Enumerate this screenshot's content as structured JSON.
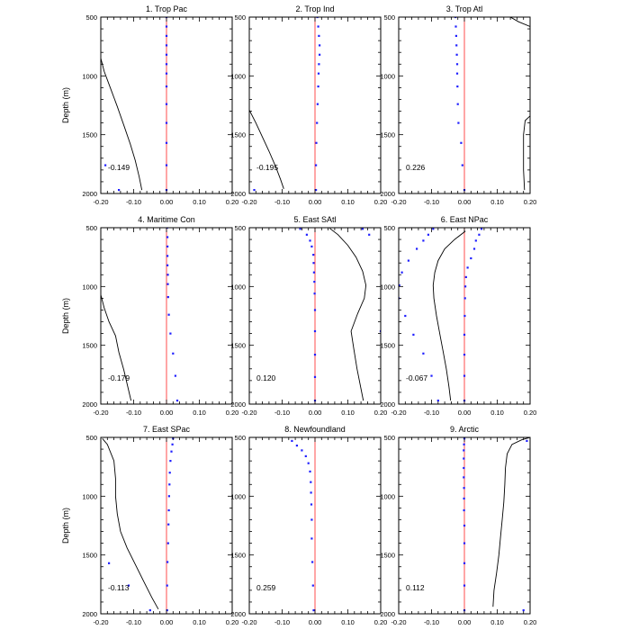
{
  "chart_data": {
    "type": "line",
    "ylabel": "Depth (m)",
    "xlim": [
      -0.2,
      0.2
    ],
    "ylim": [
      500,
      2000
    ],
    "y_reversed": true,
    "xticks": [
      "-0.20",
      "-0.10",
      "0.00",
      "0.10",
      "0.20"
    ],
    "yticks": [
      "500",
      "1000",
      "1500",
      "2000"
    ],
    "colors": {
      "zero_line": "#ff4d4d",
      "points": "#1f1fff",
      "curve": "#000000",
      "frame": "#000000"
    },
    "panels": [
      {
        "title": "1. Trop Pac",
        "value_label": "-0.149",
        "curve": [
          [
            -0.2,
            850
          ],
          [
            -0.19,
            960
          ],
          [
            -0.17,
            1110
          ],
          [
            -0.15,
            1260
          ],
          [
            -0.13,
            1420
          ],
          [
            -0.11,
            1580
          ],
          [
            -0.095,
            1720
          ],
          [
            -0.083,
            1860
          ],
          [
            -0.075,
            1970
          ]
        ],
        "points": [
          [
            0.0,
            500
          ],
          [
            0.0,
            580
          ],
          [
            0.0,
            660
          ],
          [
            0.0,
            740
          ],
          [
            0.0,
            820
          ],
          [
            0.0,
            900
          ],
          [
            0.0,
            980
          ],
          [
            0.0,
            1090
          ],
          [
            0.0,
            1240
          ],
          [
            0.0,
            1400
          ],
          [
            0.0,
            1570
          ],
          [
            0.0,
            1760
          ],
          [
            0.0,
            1970
          ],
          [
            -0.186,
            1760
          ],
          [
            -0.145,
            1970
          ]
        ]
      },
      {
        "title": "2. Trop Ind",
        "value_label": "-0.195",
        "curve": [
          [
            -0.2,
            1290
          ],
          [
            -0.18,
            1400
          ],
          [
            -0.16,
            1520
          ],
          [
            -0.14,
            1640
          ],
          [
            -0.12,
            1770
          ],
          [
            -0.105,
            1880
          ],
          [
            -0.095,
            1960
          ]
        ],
        "points": [
          [
            0.007,
            500
          ],
          [
            0.01,
            580
          ],
          [
            0.012,
            660
          ],
          [
            0.014,
            740
          ],
          [
            0.014,
            820
          ],
          [
            0.012,
            900
          ],
          [
            0.011,
            980
          ],
          [
            0.01,
            1090
          ],
          [
            0.008,
            1240
          ],
          [
            0.006,
            1400
          ],
          [
            0.004,
            1570
          ],
          [
            0.003,
            1760
          ],
          [
            0.003,
            1970
          ],
          [
            -0.185,
            1970
          ]
        ]
      },
      {
        "title": "3. Trop Atl",
        "value_label": "0.226",
        "curve_segments": [
          [
            [
              0.14,
              500
            ],
            [
              0.165,
              540
            ],
            [
              0.2,
              580
            ]
          ],
          [
            [
              0.2,
              1340
            ],
            [
              0.185,
              1380
            ],
            [
              0.18,
              1500
            ],
            [
              0.18,
              1650
            ],
            [
              0.18,
              1800
            ],
            [
              0.183,
              1970
            ]
          ]
        ],
        "points": [
          [
            -0.027,
            500
          ],
          [
            -0.026,
            580
          ],
          [
            -0.025,
            660
          ],
          [
            -0.024,
            740
          ],
          [
            -0.023,
            820
          ],
          [
            -0.022,
            900
          ],
          [
            -0.022,
            980
          ],
          [
            -0.021,
            1090
          ],
          [
            -0.02,
            1240
          ],
          [
            -0.018,
            1400
          ],
          [
            -0.01,
            1570
          ],
          [
            -0.006,
            1760
          ],
          [
            0.0,
            1970
          ]
        ]
      },
      {
        "title": "4. Maritime Con",
        "value_label": "-0.179",
        "curve": [
          [
            -0.2,
            1070
          ],
          [
            -0.19,
            1180
          ],
          [
            -0.175,
            1300
          ],
          [
            -0.155,
            1420
          ],
          [
            -0.145,
            1560
          ],
          [
            -0.13,
            1710
          ],
          [
            -0.118,
            1850
          ],
          [
            -0.108,
            1970
          ]
        ],
        "points": [
          [
            0.002,
            500
          ],
          [
            0.003,
            580
          ],
          [
            0.003,
            660
          ],
          [
            0.003,
            740
          ],
          [
            0.003,
            820
          ],
          [
            0.004,
            900
          ],
          [
            0.004,
            980
          ],
          [
            0.005,
            1090
          ],
          [
            0.007,
            1240
          ],
          [
            0.012,
            1400
          ],
          [
            0.02,
            1570
          ],
          [
            0.027,
            1760
          ],
          [
            0.033,
            1970
          ]
        ]
      },
      {
        "title": "5. East SAtl",
        "value_label": "0.120",
        "curve": [
          [
            0.045,
            505
          ],
          [
            0.07,
            560
          ],
          [
            0.1,
            650
          ],
          [
            0.125,
            750
          ],
          [
            0.145,
            870
          ],
          [
            0.155,
            990
          ],
          [
            0.15,
            1100
          ],
          [
            0.13,
            1230
          ],
          [
            0.11,
            1380
          ],
          [
            0.118,
            1530
          ],
          [
            0.128,
            1700
          ],
          [
            0.14,
            1870
          ],
          [
            0.147,
            1970
          ]
        ],
        "points": [
          [
            -0.045,
            510
          ],
          [
            -0.025,
            560
          ],
          [
            -0.015,
            610
          ],
          [
            -0.01,
            660
          ],
          [
            -0.005,
            730
          ],
          [
            -0.004,
            800
          ],
          [
            -0.003,
            880
          ],
          [
            -0.002,
            960
          ],
          [
            -0.001,
            1060
          ],
          [
            0.0,
            1200
          ],
          [
            0.0,
            1380
          ],
          [
            0.0,
            1580
          ],
          [
            0.0,
            1770
          ],
          [
            0.0,
            1970
          ],
          [
            0.145,
            510
          ],
          [
            0.165,
            560
          ],
          [
            0.2,
            1380
          ]
        ]
      },
      {
        "title": "6. East NPac",
        "value_label": "-0.067",
        "curve": [
          [
            0.003,
            530
          ],
          [
            -0.03,
            600
          ],
          [
            -0.06,
            680
          ],
          [
            -0.08,
            780
          ],
          [
            -0.09,
            880
          ],
          [
            -0.095,
            990
          ],
          [
            -0.093,
            1100
          ],
          [
            -0.085,
            1250
          ],
          [
            -0.075,
            1400
          ],
          [
            -0.065,
            1550
          ],
          [
            -0.055,
            1700
          ],
          [
            -0.047,
            1850
          ],
          [
            -0.042,
            1970
          ]
        ],
        "points": [
          [
            -0.095,
            510
          ],
          [
            -0.11,
            560
          ],
          [
            -0.125,
            610
          ],
          [
            -0.145,
            680
          ],
          [
            -0.17,
            780
          ],
          [
            -0.19,
            880
          ],
          [
            -0.198,
            990
          ],
          [
            -0.2,
            1100
          ],
          [
            -0.18,
            1250
          ],
          [
            -0.155,
            1410
          ],
          [
            -0.125,
            1570
          ],
          [
            -0.1,
            1760
          ],
          [
            -0.08,
            1970
          ],
          [
            0.052,
            510
          ],
          [
            0.045,
            560
          ],
          [
            0.035,
            610
          ],
          [
            0.03,
            680
          ],
          [
            0.02,
            760
          ],
          [
            0.01,
            840
          ],
          [
            0.005,
            920
          ],
          [
            0.003,
            1000
          ],
          [
            0.002,
            1100
          ],
          [
            0.001,
            1250
          ],
          [
            0.0,
            1410
          ],
          [
            0.0,
            1580
          ],
          [
            0.0,
            1760
          ],
          [
            0.0,
            1970
          ]
        ]
      },
      {
        "title": "7. East SPac",
        "value_label": "-0.113",
        "curve": [
          [
            -0.195,
            510
          ],
          [
            -0.18,
            560
          ],
          [
            -0.16,
            700
          ],
          [
            -0.155,
            850
          ],
          [
            -0.155,
            1000
          ],
          [
            -0.15,
            1150
          ],
          [
            -0.14,
            1300
          ],
          [
            -0.12,
            1440
          ],
          [
            -0.095,
            1580
          ],
          [
            -0.07,
            1720
          ],
          [
            -0.045,
            1860
          ],
          [
            -0.025,
            1960
          ]
        ],
        "points": [
          [
            0.02,
            510
          ],
          [
            0.018,
            560
          ],
          [
            0.015,
            620
          ],
          [
            0.012,
            700
          ],
          [
            0.01,
            800
          ],
          [
            0.009,
            900
          ],
          [
            0.008,
            1000
          ],
          [
            0.007,
            1120
          ],
          [
            0.006,
            1240
          ],
          [
            0.005,
            1400
          ],
          [
            0.003,
            1560
          ],
          [
            0.002,
            1760
          ],
          [
            0.002,
            1970
          ],
          [
            -0.175,
            1570
          ],
          [
            -0.115,
            1760
          ],
          [
            -0.05,
            1970
          ]
        ]
      },
      {
        "title": "8. Newfoundland",
        "value_label": "0.259",
        "points": [
          [
            -0.07,
            530
          ],
          [
            -0.055,
            570
          ],
          [
            -0.04,
            610
          ],
          [
            -0.028,
            660
          ],
          [
            -0.02,
            720
          ],
          [
            -0.015,
            790
          ],
          [
            -0.013,
            880
          ],
          [
            -0.012,
            970
          ],
          [
            -0.011,
            1070
          ],
          [
            -0.01,
            1200
          ],
          [
            -0.01,
            1360
          ],
          [
            -0.008,
            1560
          ],
          [
            -0.006,
            1760
          ],
          [
            -0.004,
            1970
          ]
        ]
      },
      {
        "title": "9. Arctic",
        "value_label": "0.112",
        "curve": [
          [
            0.2,
            500
          ],
          [
            0.175,
            520
          ],
          [
            0.145,
            560
          ],
          [
            0.13,
            640
          ],
          [
            0.125,
            760
          ],
          [
            0.123,
            900
          ],
          [
            0.12,
            1050
          ],
          [
            0.115,
            1200
          ],
          [
            0.11,
            1350
          ],
          [
            0.105,
            1500
          ],
          [
            0.098,
            1650
          ],
          [
            0.09,
            1800
          ],
          [
            0.087,
            1940
          ]
        ],
        "points": [
          [
            0.0,
            510
          ],
          [
            -0.001,
            560
          ],
          [
            -0.002,
            610
          ],
          [
            -0.002,
            680
          ],
          [
            -0.002,
            760
          ],
          [
            -0.002,
            840
          ],
          [
            -0.001,
            930
          ],
          [
            -0.001,
            1020
          ],
          [
            -0.001,
            1120
          ],
          [
            0.0,
            1250
          ],
          [
            0.0,
            1400
          ],
          [
            0.0,
            1570
          ],
          [
            0.0,
            1760
          ],
          [
            0.0,
            1970
          ],
          [
            0.19,
            530
          ],
          [
            0.18,
            1970
          ]
        ]
      }
    ]
  }
}
